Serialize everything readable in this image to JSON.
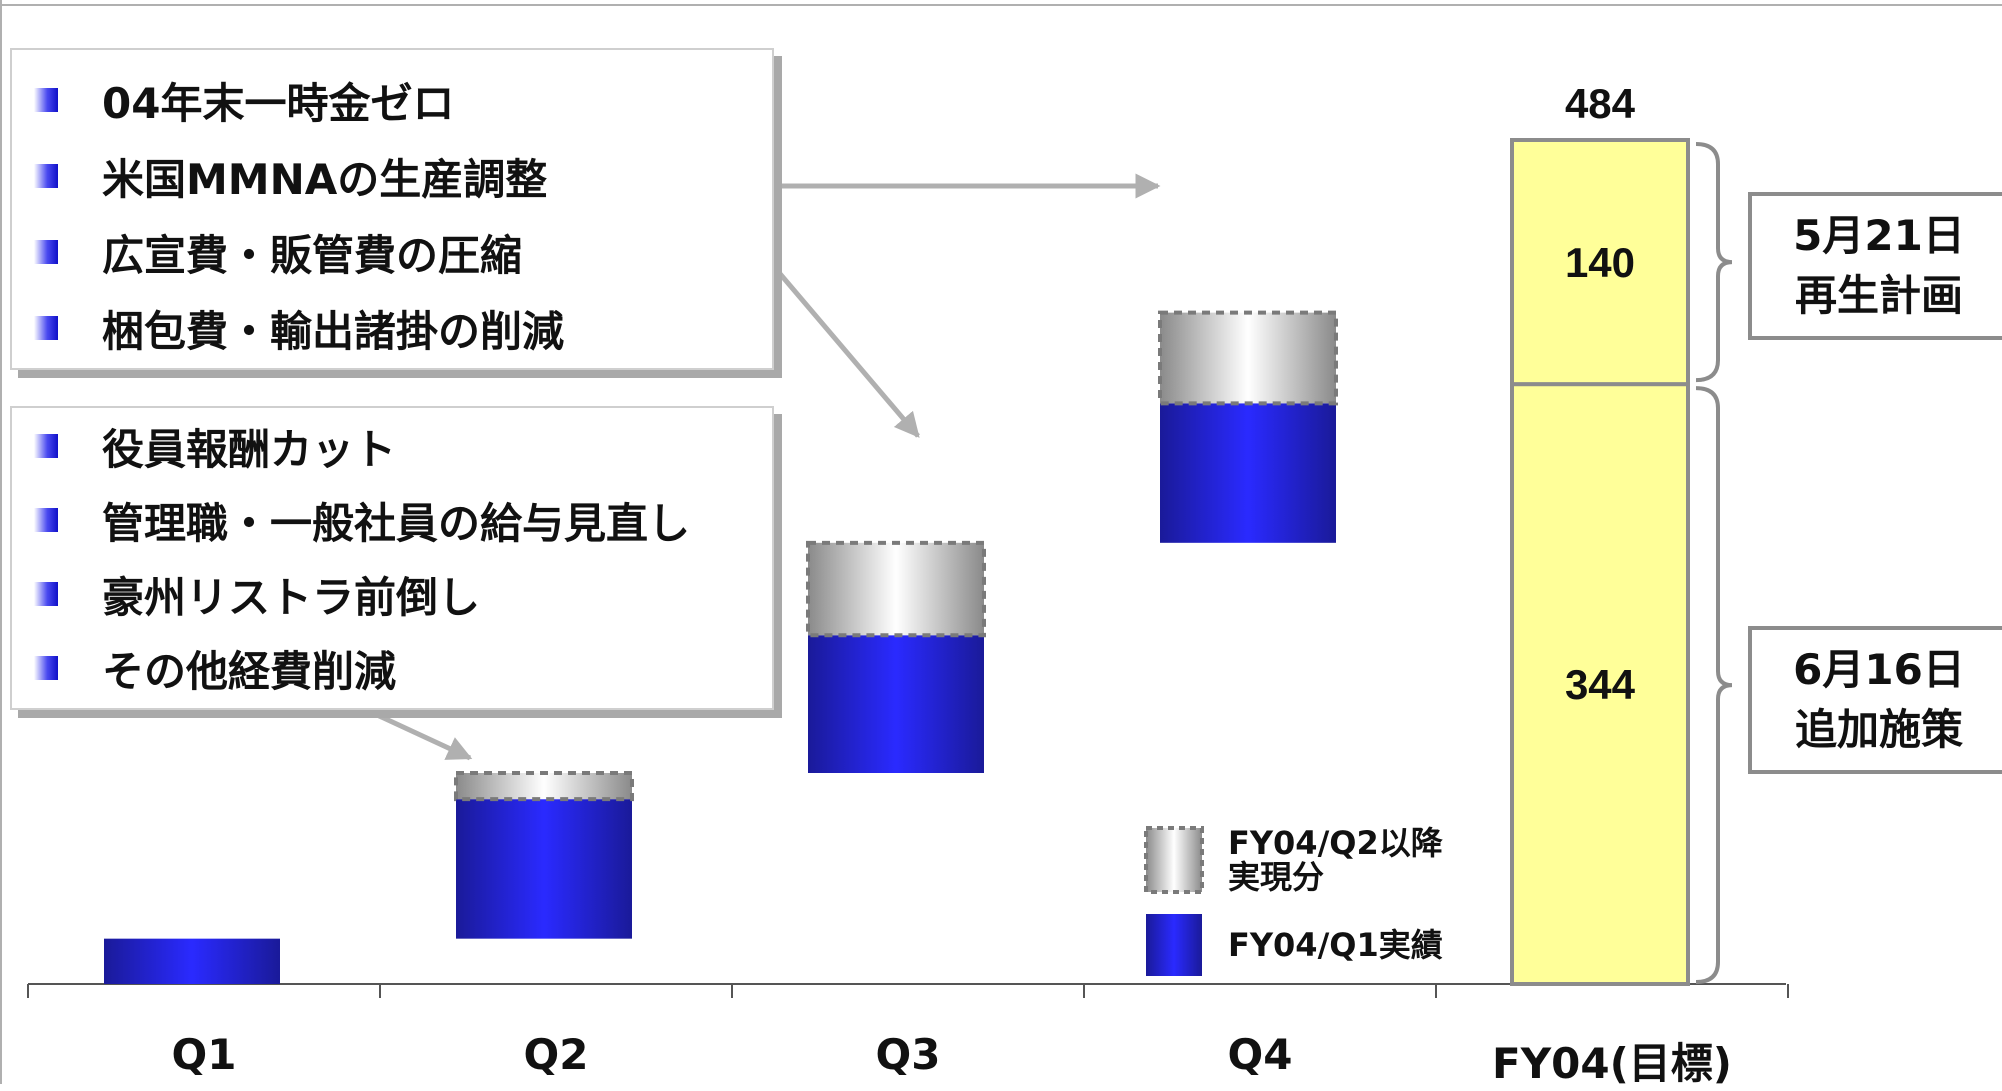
{
  "chart_data": {
    "type": "waterfall",
    "categories": [
      "Q1",
      "Q2",
      "Q3",
      "Q4",
      "FY04(目標)"
    ],
    "series": [
      {
        "name": "FY04/Q1実績",
        "color": "#0000cc",
        "values": [
          26,
          80,
          79,
          80,
          null
        ]
      },
      {
        "name": "FY04/Q2以降実現分",
        "color": "#c0c0c0",
        "values": [
          null,
          15,
          53,
          52,
          null
        ]
      }
    ],
    "target": {
      "total": 484,
      "segments": [
        344,
        140
      ]
    },
    "ylim": [
      0,
      484
    ],
    "annotations": {
      "total_label": "484",
      "segment_labels": [
        "344",
        "140"
      ]
    }
  },
  "callouts": [
    {
      "items": [
        "04年末一時金ゼロ",
        "米国MMNAの生産調整",
        "広宣費・販管費の圧縮",
        "梱包費・輸出諸掛の削減"
      ]
    },
    {
      "items": [
        "役員報酬カット",
        "管理職・一般社員の給与見直し",
        "豪州リストラ前倒し",
        "その他経費削減"
      ]
    }
  ],
  "notes": [
    {
      "line1": "5月21日",
      "line2": "再生計画"
    },
    {
      "line1": "6月16日",
      "line2": "追加施策"
    }
  ],
  "legend": [
    {
      "line1": "FY04/Q2以降",
      "line2": "実現分"
    },
    {
      "line1": "FY04/Q1実績",
      "line2": ""
    }
  ],
  "colors": {
    "actual": "#0000cc",
    "realized": "#c0c0c0",
    "target_fill": "#ffff99",
    "target_border": "#8c8c8c"
  }
}
